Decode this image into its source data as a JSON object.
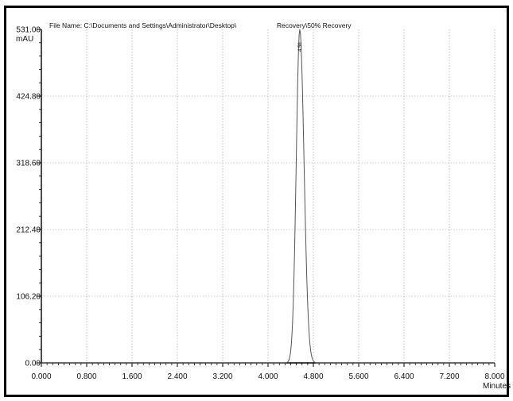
{
  "header": {
    "file_name": "File Name: C:\\Documents and Settings\\Administrator\\Desktop\\",
    "sample": "Recovery\\50% Recovery"
  },
  "chart_data": {
    "type": "line",
    "xlabel": "Minutes",
    "ylabel": "mAU",
    "xlim": [
      0,
      8
    ],
    "ylim": [
      0,
      531
    ],
    "x_ticks": [
      "0.000",
      "0.800",
      "1.600",
      "2.400",
      "3.200",
      "4.000",
      "4.800",
      "5.600",
      "6.400",
      "7.200",
      "8.000"
    ],
    "y_ticks": [
      "0.00",
      "106.20",
      "212.40",
      "318.60",
      "424.80",
      "531.00"
    ],
    "grid": true,
    "series": [
      {
        "peak": {
          "retention_time": 4.56,
          "height": 531,
          "start": 4.32,
          "end": 4.86,
          "label": "4.56"
        },
        "baseline": 0
      }
    ],
    "colors": {
      "trace": "#555555",
      "grid": "#9a9a9a",
      "axis": "#000000",
      "frame": "#000000"
    }
  }
}
